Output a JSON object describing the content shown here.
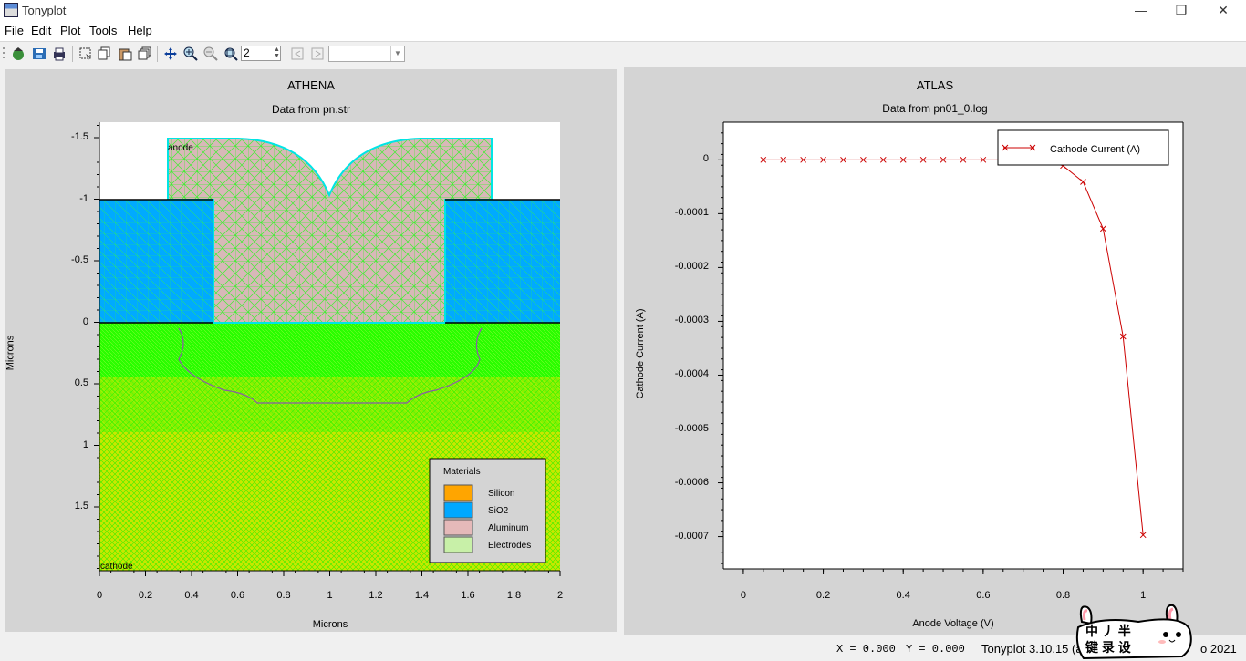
{
  "window": {
    "title": "Tonyplot",
    "minimize": "—",
    "maximize": "❐",
    "close": "✕"
  },
  "menu": [
    "File",
    "Edit",
    "Plot",
    "Tools",
    "Help"
  ],
  "toolbar": {
    "zoom_value": "2",
    "icons": [
      "load-icon",
      "save-icon",
      "print-icon",
      "select-icon",
      "copy-icon",
      "paste-icon",
      "duplicate-icon",
      "pan-icon",
      "zoom-in-icon",
      "zoom-out-icon",
      "zoom-box-icon",
      "previous-icon",
      "next-icon"
    ]
  },
  "left_plot": {
    "title": "ATHENA",
    "subtitle": "Data from pn.str",
    "xlabel": "Microns",
    "ylabel": "Microns",
    "x_ticks": [
      "0",
      "0.2",
      "0.4",
      "0.6",
      "0.8",
      "1",
      "1.2",
      "1.4",
      "1.6",
      "1.8",
      "2"
    ],
    "y_ticks": [
      "-1.5",
      "-1",
      "-0.5",
      "0",
      "0.5",
      "1",
      "1.5"
    ],
    "labels": {
      "anode": "anode",
      "cathode": "cathode"
    },
    "legend": {
      "title": "Materials",
      "items": [
        {
          "label": "Silicon",
          "color": "#ffa500"
        },
        {
          "label": "SiO2",
          "color": "#00a8ff"
        },
        {
          "label": "Aluminum",
          "color": "#e5b9b9"
        },
        {
          "label": "Electrodes",
          "color": "#c8f0a8"
        }
      ]
    },
    "colors": {
      "mesh": "#00ff00",
      "silicon": "#cde400",
      "sio2": "#00aaff",
      "aluminum": "#d8b8b8",
      "electrode_edge": "#00e5e5"
    }
  },
  "chart_data": {
    "type": "line",
    "title": "ATLAS",
    "subtitle": "Data from pn01_0.log",
    "xlabel": "Anode Voltage (V)",
    "ylabel": "Cathode Current (A)",
    "xlim": [
      -0.05,
      1.1
    ],
    "ylim": [
      -0.00076,
      7e-05
    ],
    "x_ticks": [
      "0",
      "0.2",
      "0.4",
      "0.6",
      "0.8",
      "1"
    ],
    "y_ticks": [
      "0",
      "-0.0001",
      "-0.0002",
      "-0.0003",
      "-0.0004",
      "-0.0005",
      "-0.0006",
      "-0.0007"
    ],
    "legend_position": "top-right",
    "series": [
      {
        "name": "Cathode Current (A)",
        "color": "#cc0000",
        "x": [
          0.05,
          0.1,
          0.15,
          0.2,
          0.25,
          0.3,
          0.35,
          0.4,
          0.45,
          0.5,
          0.55,
          0.6,
          0.65,
          0.7,
          0.75,
          0.8,
          0.85,
          0.9,
          0.95,
          1.0
        ],
        "y": [
          0,
          0,
          0,
          0,
          0,
          0,
          0,
          0,
          0,
          0,
          0,
          0,
          0,
          0,
          -5e-07,
          -1.1e-05,
          -4.1e-05,
          -0.000128,
          -0.000328,
          -0.000697
        ]
      }
    ]
  },
  "status": {
    "x_readout": "X  =  0.000",
    "y_readout": "Y  =  0.000",
    "version": "Tonyplot 3.10.15 (a",
    "copyright": "o 2021"
  },
  "watermark": {
    "top": "中 丿 半",
    "bottom": "键 录 设"
  }
}
